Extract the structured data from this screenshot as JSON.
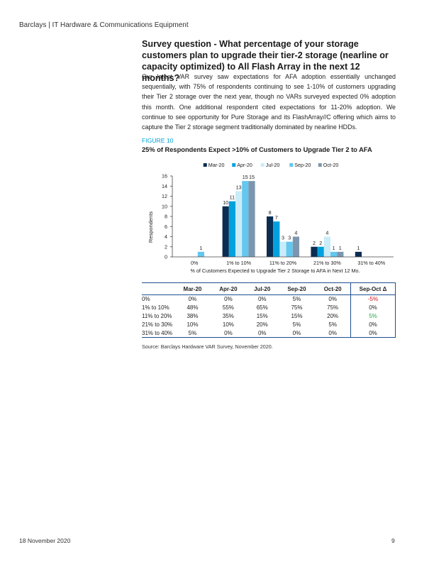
{
  "header": {
    "text": "Barclays | IT Hardware & Communications Equipment"
  },
  "section": {
    "heading": "Survey question - What percentage of your storage customers plan to upgrade their tier-2 storage (nearline or capacity optimized) to All Flash Array in the next 12 months?",
    "paragraph": "Our latest VAR survey saw expectations for AFA adoption essentially unchanged sequentially, with 75% of respondents continuing to see 1-10% of customers upgrading their Tier 2 storage over the next year, though no VARs surveyed expected 0% adoption this month. One additional respondent cited expectations for 11-20% adoption. We continue to see opportunity for Pure Storage and its FlashArray//C offering which aims to capture the Tier 2 storage segment traditionally dominated by nearline HDDs."
  },
  "figure": {
    "label": "FIGURE 10",
    "title": "25% of Respondents Expect >10% of Customers to Upgrade Tier 2 to AFA"
  },
  "chart_data": {
    "type": "bar",
    "categories": [
      "0%",
      "1% to 10%",
      "11% to 20%",
      "21% to 30%",
      "31% to 40%"
    ],
    "series": [
      {
        "name": "Mar-20",
        "color": "#0c2d52",
        "values": [
          0,
          10,
          8,
          2,
          1
        ]
      },
      {
        "name": "Apr-20",
        "color": "#00a1de",
        "values": [
          0,
          11,
          7,
          2,
          0
        ]
      },
      {
        "name": "Jul-20",
        "color": "#c9ecf8",
        "values": [
          0,
          13,
          3,
          4,
          0
        ]
      },
      {
        "name": "Sep-20",
        "color": "#63c7ef",
        "values": [
          1,
          15,
          3,
          1,
          0
        ]
      },
      {
        "name": "Oct-20",
        "color": "#7d96ae",
        "values": [
          0,
          15,
          4,
          1,
          0
        ]
      }
    ],
    "ylabel": "Respondents",
    "xlabel": "% of Customers Expected to Upgrade Tier 2 Storage to AFA in Next 12 Mo.",
    "ylim": [
      0,
      16
    ],
    "yticks": [
      0,
      2,
      4,
      6,
      8,
      10,
      12,
      14,
      16
    ],
    "legend_position": "top-center",
    "grid": false
  },
  "table": {
    "headers": [
      "",
      "Mar-20",
      "Apr-20",
      "Jul-20",
      "Sep-20",
      "Oct-20",
      "Sep-Oct Δ"
    ],
    "rows": [
      {
        "label": "0%",
        "cells": [
          "0%",
          "0%",
          "0%",
          "5%",
          "0%"
        ],
        "delta": "-5%",
        "delta_tone": "neg"
      },
      {
        "label": "1% to 10%",
        "cells": [
          "48%",
          "55%",
          "65%",
          "75%",
          "75%"
        ],
        "delta": "0%",
        "delta_tone": ""
      },
      {
        "label": "11% to 20%",
        "cells": [
          "38%",
          "35%",
          "15%",
          "15%",
          "20%"
        ],
        "delta": "5%",
        "delta_tone": "pos"
      },
      {
        "label": "21% to 30%",
        "cells": [
          "10%",
          "10%",
          "20%",
          "5%",
          "5%"
        ],
        "delta": "0%",
        "delta_tone": ""
      },
      {
        "label": "31% to 40%",
        "cells": [
          "5%",
          "0%",
          "0%",
          "0%",
          "0%"
        ],
        "delta": "0%",
        "delta_tone": ""
      }
    ],
    "colors": {
      "negative": "#d0121b",
      "positive": "#2aa24a"
    }
  },
  "source": "Source: Barclays Hardware VAR Survey, November 2020.",
  "footer": {
    "date": "18 November 2020",
    "page": "9"
  }
}
